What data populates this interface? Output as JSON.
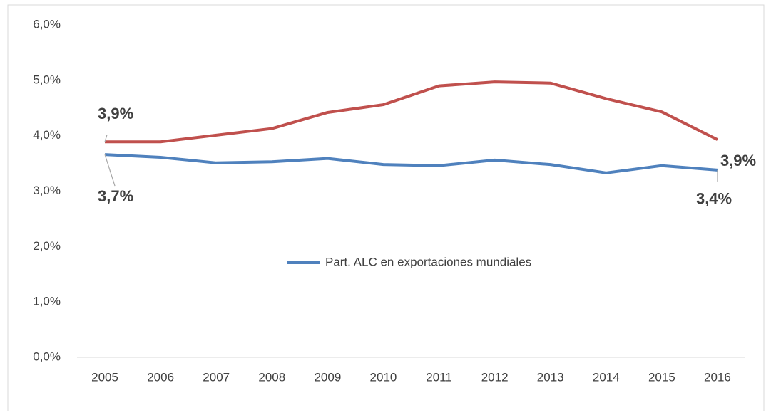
{
  "chart_data": {
    "type": "line",
    "categories": [
      "2005",
      "2006",
      "2007",
      "2008",
      "2009",
      "2010",
      "2011",
      "2012",
      "2013",
      "2014",
      "2015",
      "2016"
    ],
    "series": [
      {
        "color": "#c0504d",
        "values": [
          3.89,
          3.89,
          4.01,
          4.13,
          4.42,
          4.56,
          4.9,
          4.97,
          4.95,
          4.67,
          4.43,
          3.93
        ],
        "value_labels": [
          "3,9%",
          null,
          null,
          null,
          null,
          null,
          null,
          null,
          null,
          null,
          null,
          "3,9%"
        ]
      },
      {
        "name": "Part. ALC en exportaciones mundiales",
        "color": "#4f81bd",
        "values": [
          3.66,
          3.61,
          3.51,
          3.53,
          3.59,
          3.48,
          3.46,
          3.56,
          3.48,
          3.33,
          3.46,
          3.38
        ],
        "value_labels": [
          "3,7%",
          null,
          null,
          null,
          null,
          null,
          null,
          null,
          null,
          null,
          null,
          "3,4%"
        ]
      }
    ],
    "ylim": [
      0,
      6
    ],
    "yticks": [
      {
        "value": 0,
        "label": "0,0%"
      },
      {
        "value": 1,
        "label": "1,0%"
      },
      {
        "value": 2,
        "label": "2,0%"
      },
      {
        "value": 3,
        "label": "3,0%"
      },
      {
        "value": 4,
        "label": "4,0%"
      },
      {
        "value": 5,
        "label": "5,0%"
      },
      {
        "value": 6,
        "label": "6,0%"
      }
    ],
    "grid": false
  }
}
